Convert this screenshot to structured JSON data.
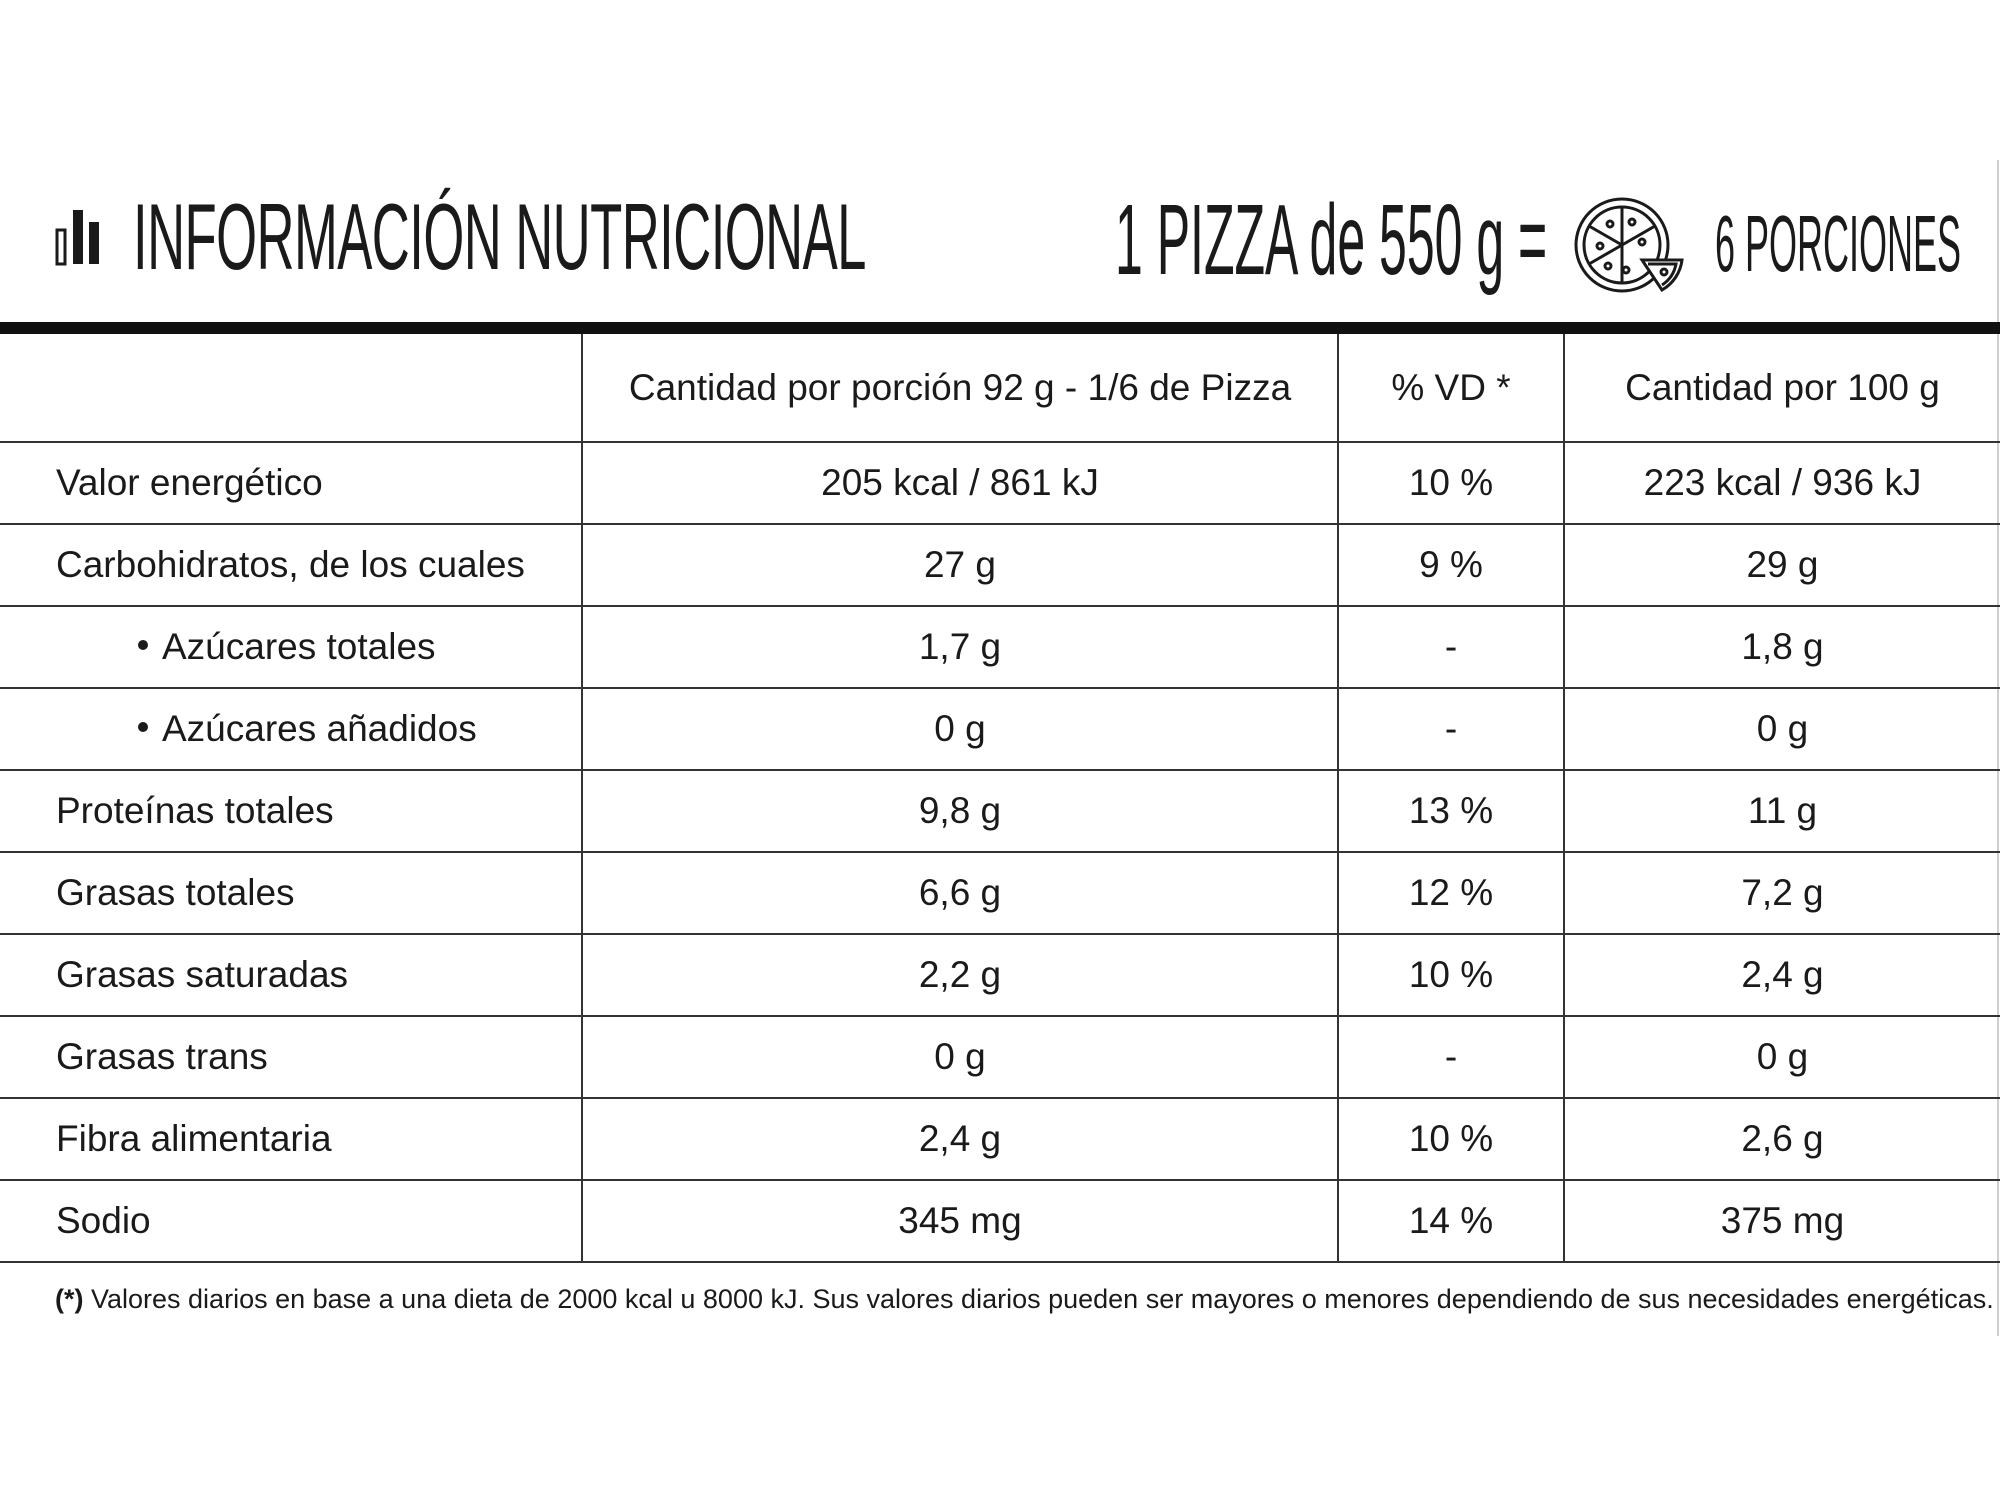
{
  "header": {
    "title": "INFORMACIÓN NUTRICIONAL",
    "pizza_size": "1 PIZZA de 550 g =",
    "portions": "6 PORCIONES",
    "icons": [
      "bar-chart-icon",
      "pizza-icon"
    ]
  },
  "table": {
    "columns": [
      "",
      "Cantidad por porción 92 g - 1/6 de Pizza",
      "% VD *",
      "Cantidad por 100 g"
    ],
    "rows": [
      {
        "label": "Valor energético",
        "per_portion": "205 kcal / 861 kJ",
        "vd": "10 %",
        "per_100g": "223 kcal / 936 kJ"
      },
      {
        "label": "Carbohidratos, de los cuales",
        "per_portion": "27 g",
        "vd": "9 %",
        "per_100g": "29 g"
      },
      {
        "label": "Azúcares totales",
        "per_portion": "1,7 g",
        "vd": "-",
        "per_100g": "1,8 g"
      },
      {
        "label": "Azúcares añadidos",
        "per_portion": "0 g",
        "vd": "-",
        "per_100g": "0 g"
      },
      {
        "label": "Proteínas totales",
        "per_portion": "9,8 g",
        "vd": "13 %",
        "per_100g": "11 g"
      },
      {
        "label": "Grasas totales",
        "per_portion": "6,6 g",
        "vd": "12 %",
        "per_100g": "7,2 g"
      },
      {
        "label": "Grasas saturadas",
        "per_portion": "2,2 g",
        "vd": "10 %",
        "per_100g": "2,4 g"
      },
      {
        "label": "Grasas trans",
        "per_portion": "0 g",
        "vd": "-",
        "per_100g": "0 g"
      },
      {
        "label": "Fibra alimentaria",
        "per_portion": "2,4 g",
        "vd": "10 %",
        "per_100g": "2,6 g"
      },
      {
        "label": "Sodio",
        "per_portion": "345 mg",
        "vd": "14 %",
        "per_100g": "375 mg"
      }
    ]
  },
  "footnote": {
    "mark": "(*)",
    "text": " Valores diarios en base a una dieta de 2000 kcal u 8000 kJ. Sus valores diarios pueden ser mayores o menores dependiendo de sus necesidades energéticas."
  }
}
